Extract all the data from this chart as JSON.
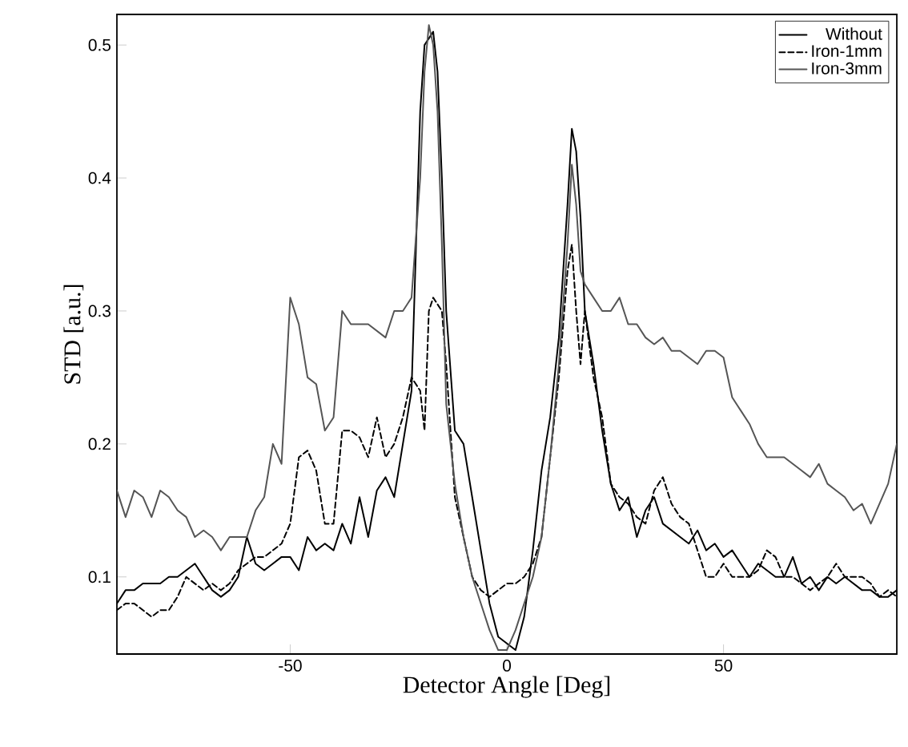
{
  "chart_data": {
    "type": "line",
    "xlabel": "Detector Angle [Deg]",
    "ylabel": "STD [a.u.]",
    "xlim": [
      -90,
      90
    ],
    "ylim": [
      0.042,
      0.523
    ],
    "xticks": [
      -50,
      0,
      50
    ],
    "yticks": [
      0.1,
      0.2,
      0.3,
      0.4,
      0.5
    ],
    "grid": false,
    "legend": "top right",
    "marker": "none",
    "x": [
      -90,
      -88,
      -86,
      -84,
      -82,
      -80,
      -78,
      -76,
      -74,
      -72,
      -70,
      -68,
      -66,
      -64,
      -62,
      -60,
      -58,
      -56,
      -54,
      -52,
      -50,
      -48,
      -46,
      -44,
      -42,
      -40,
      -38,
      -36,
      -34,
      -32,
      -30,
      -28,
      -26,
      -24,
      -22,
      -20,
      -19,
      -18,
      -17,
      -16,
      -15,
      -14,
      -12,
      -10,
      -8,
      -6,
      -4,
      -2,
      0,
      2,
      4,
      6,
      8,
      10,
      12,
      14,
      15,
      16,
      17,
      18,
      20,
      22,
      24,
      26,
      28,
      30,
      32,
      34,
      36,
      38,
      40,
      42,
      44,
      46,
      48,
      50,
      52,
      54,
      56,
      58,
      60,
      62,
      64,
      66,
      68,
      70,
      72,
      74,
      76,
      78,
      80,
      82,
      84,
      86,
      88,
      90
    ],
    "series": [
      {
        "name": "Without",
        "color": "#000000",
        "line_style": "solid",
        "values": [
          0.08,
          0.09,
          0.09,
          0.095,
          0.095,
          0.095,
          0.1,
          0.1,
          0.105,
          0.11,
          0.1,
          0.09,
          0.085,
          0.09,
          0.1,
          0.13,
          0.11,
          0.105,
          0.11,
          0.115,
          0.115,
          0.105,
          0.13,
          0.12,
          0.125,
          0.12,
          0.14,
          0.125,
          0.16,
          0.13,
          0.165,
          0.175,
          0.16,
          0.2,
          0.24,
          0.45,
          0.5,
          0.505,
          0.51,
          0.48,
          0.4,
          0.3,
          0.21,
          0.2,
          0.16,
          0.12,
          0.08,
          0.055,
          0.05,
          0.045,
          0.07,
          0.12,
          0.18,
          0.22,
          0.28,
          0.38,
          0.437,
          0.42,
          0.37,
          0.3,
          0.26,
          0.21,
          0.17,
          0.15,
          0.16,
          0.13,
          0.15,
          0.16,
          0.14,
          0.135,
          0.13,
          0.125,
          0.135,
          0.12,
          0.125,
          0.115,
          0.12,
          0.11,
          0.1,
          0.11,
          0.105,
          0.1,
          0.1,
          0.115,
          0.095,
          0.1,
          0.09,
          0.1,
          0.095,
          0.1,
          0.095,
          0.09,
          0.09,
          0.085,
          0.085,
          0.09
        ]
      },
      {
        "name": "Iron-1mm",
        "color": "#000000",
        "line_style": "dashed",
        "values": [
          0.075,
          0.08,
          0.08,
          0.075,
          0.07,
          0.075,
          0.075,
          0.085,
          0.1,
          0.095,
          0.09,
          0.095,
          0.09,
          0.095,
          0.105,
          0.11,
          0.115,
          0.115,
          0.12,
          0.125,
          0.14,
          0.19,
          0.195,
          0.18,
          0.14,
          0.14,
          0.21,
          0.21,
          0.205,
          0.19,
          0.22,
          0.19,
          0.2,
          0.22,
          0.25,
          0.24,
          0.21,
          0.3,
          0.31,
          0.305,
          0.3,
          0.26,
          0.16,
          0.13,
          0.1,
          0.09,
          0.085,
          0.09,
          0.095,
          0.095,
          0.1,
          0.11,
          0.13,
          0.19,
          0.25,
          0.33,
          0.35,
          0.3,
          0.26,
          0.3,
          0.25,
          0.22,
          0.17,
          0.16,
          0.155,
          0.145,
          0.14,
          0.165,
          0.175,
          0.155,
          0.145,
          0.14,
          0.12,
          0.1,
          0.1,
          0.11,
          0.1,
          0.1,
          0.1,
          0.105,
          0.12,
          0.115,
          0.1,
          0.1,
          0.095,
          0.09,
          0.095,
          0.1,
          0.11,
          0.1,
          0.1,
          0.1,
          0.095,
          0.085,
          0.09,
          0.085
        ]
      },
      {
        "name": "Iron-3mm",
        "color": "#555555",
        "line_style": "solid",
        "values": [
          0.165,
          0.145,
          0.165,
          0.16,
          0.145,
          0.165,
          0.16,
          0.15,
          0.145,
          0.13,
          0.135,
          0.13,
          0.12,
          0.13,
          0.13,
          0.13,
          0.15,
          0.16,
          0.2,
          0.185,
          0.31,
          0.29,
          0.25,
          0.245,
          0.21,
          0.22,
          0.3,
          0.29,
          0.29,
          0.29,
          0.285,
          0.28,
          0.3,
          0.3,
          0.31,
          0.4,
          0.48,
          0.515,
          0.5,
          0.45,
          0.35,
          0.23,
          0.17,
          0.13,
          0.1,
          0.08,
          0.06,
          0.045,
          0.045,
          0.06,
          0.08,
          0.1,
          0.13,
          0.19,
          0.26,
          0.35,
          0.41,
          0.38,
          0.33,
          0.32,
          0.31,
          0.3,
          0.3,
          0.31,
          0.29,
          0.29,
          0.28,
          0.275,
          0.28,
          0.27,
          0.27,
          0.265,
          0.26,
          0.27,
          0.27,
          0.265,
          0.235,
          0.225,
          0.215,
          0.2,
          0.19,
          0.19,
          0.19,
          0.185,
          0.18,
          0.175,
          0.185,
          0.17,
          0.165,
          0.16,
          0.15,
          0.155,
          0.14,
          0.155,
          0.17,
          0.2
        ]
      }
    ]
  }
}
